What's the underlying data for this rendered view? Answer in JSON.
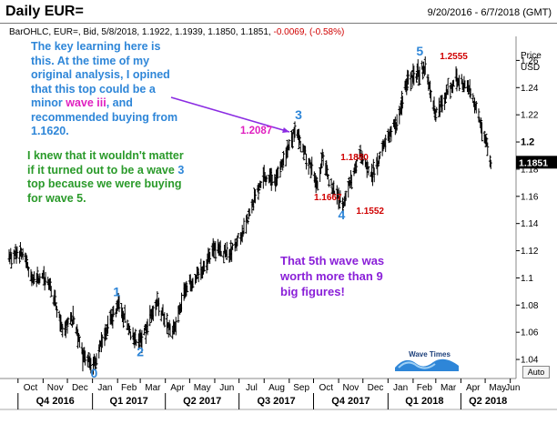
{
  "header": {
    "title": "Daily EUR=",
    "date_range": "9/20/2016 - 6/7/2018 (GMT)"
  },
  "info_line": {
    "main": "BarOHLC, EUR=, Bid, 5/8/2018, 1.1922, 1.1939, 1.1850, 1.1851,",
    "change": "-0.0069, (-0.58%)"
  },
  "annotations": {
    "key_learning": {
      "part1": "The key learning here is this. At the time of my original analysis, I opined that this top could be a minor",
      "highlight": "wave iii",
      "part2": ", and recommended buying from 1.1620."
    },
    "knew": {
      "part1": "I knew that it wouldn't matter if it turned out to be a wave",
      "highlight": "3",
      "part2": "top because we were buying for wave 5."
    },
    "fifth_wave": "That 5th wave was worth more than 9 big figures!"
  },
  "logo_text": "Wave Times",
  "auto_button": "Auto",
  "colors": {
    "bars": "#000000",
    "wave_labels": "#2e86d8",
    "price_labels": "#d00000",
    "highlight_label": "#e020c0",
    "arrow": "#8a2be2",
    "note_blue": "#2e86d8",
    "note_green": "#2a9a2a",
    "note_purple": "#8a20d8"
  },
  "chart_data": {
    "type": "ohlc",
    "ylabel": "Price",
    "yunit": "USD",
    "ylim": [
      1.03,
      1.275
    ],
    "yticks": [
      "1.26",
      "1.24",
      "1.22",
      "1.2",
      "1.18",
      "1.16",
      "1.14",
      "1.12",
      "1.1",
      "1.08",
      "1.06",
      "1.04"
    ],
    "last_price": "1.1851",
    "x_months": [
      "Oct",
      "Nov",
      "Dec",
      "Jan",
      "Feb",
      "Mar",
      "Apr",
      "May",
      "Jun",
      "Jul",
      "Aug",
      "Sep",
      "Oct",
      "Nov",
      "Dec",
      "Jan",
      "Feb",
      "Mar",
      "Apr",
      "May",
      "Jun"
    ],
    "x_quarters": [
      "Q4 2016",
      "Q1 2017",
      "Q2 2017",
      "Q3 2017",
      "Q4 2017",
      "Q1 2018",
      "Q2 2018"
    ],
    "price_path": [
      {
        "date": "2016-09-20",
        "price": 1.115
      },
      {
        "date": "2016-10-05",
        "price": 1.118
      },
      {
        "date": "2016-10-20",
        "price": 1.1
      },
      {
        "date": "2016-11-08",
        "price": 1.098
      },
      {
        "date": "2016-11-25",
        "price": 1.063
      },
      {
        "date": "2016-12-08",
        "price": 1.07
      },
      {
        "date": "2016-12-20",
        "price": 1.043
      },
      {
        "date": "2017-01-03",
        "price": 1.036
      },
      {
        "date": "2017-01-20",
        "price": 1.065
      },
      {
        "date": "2017-02-02",
        "price": 1.08
      },
      {
        "date": "2017-02-22",
        "price": 1.055
      },
      {
        "date": "2017-03-01",
        "price": 1.053
      },
      {
        "date": "2017-03-22",
        "price": 1.082
      },
      {
        "date": "2017-04-10",
        "price": 1.058
      },
      {
        "date": "2017-04-25",
        "price": 1.09
      },
      {
        "date": "2017-05-15",
        "price": 1.105
      },
      {
        "date": "2017-06-01",
        "price": 1.122
      },
      {
        "date": "2017-06-20",
        "price": 1.116
      },
      {
        "date": "2017-07-10",
        "price": 1.14
      },
      {
        "date": "2017-07-31",
        "price": 1.175
      },
      {
        "date": "2017-08-16",
        "price": 1.172
      },
      {
        "date": "2017-09-08",
        "price": 1.2087
      },
      {
        "date": "2017-09-25",
        "price": 1.185
      },
      {
        "date": "2017-10-06",
        "price": 1.1667
      },
      {
        "date": "2017-10-12",
        "price": 1.188
      },
      {
        "date": "2017-10-27",
        "price": 1.16
      },
      {
        "date": "2017-11-07",
        "price": 1.1552
      },
      {
        "date": "2017-11-27",
        "price": 1.192
      },
      {
        "date": "2017-12-12",
        "price": 1.175
      },
      {
        "date": "2017-12-29",
        "price": 1.2
      },
      {
        "date": "2018-01-12",
        "price": 1.215
      },
      {
        "date": "2018-01-25",
        "price": 1.245
      },
      {
        "date": "2018-02-16",
        "price": 1.2555
      },
      {
        "date": "2018-03-01",
        "price": 1.22
      },
      {
        "date": "2018-03-27",
        "price": 1.247
      },
      {
        "date": "2018-04-12",
        "price": 1.238
      },
      {
        "date": "2018-04-25",
        "price": 1.215
      },
      {
        "date": "2018-05-08",
        "price": 1.1851
      }
    ],
    "wave_labels": [
      {
        "text": "0",
        "date": "2017-01-03",
        "price": 1.036
      },
      {
        "text": "1",
        "date": "2017-02-02",
        "price": 1.08
      },
      {
        "text": "2",
        "date": "2017-03-01",
        "price": 1.053
      },
      {
        "text": "3",
        "date": "2017-09-08",
        "price": 1.2087
      },
      {
        "text": "4",
        "date": "2017-11-07",
        "price": 1.1552
      },
      {
        "text": "5",
        "date": "2018-02-16",
        "price": 1.2555
      }
    ],
    "price_labels": [
      {
        "text": "1.2087",
        "date": "2017-09-08",
        "price": 1.2087
      },
      {
        "text": "1.1880",
        "date": "2017-10-12",
        "price": 1.188
      },
      {
        "text": "1.1667",
        "date": "2017-10-06",
        "price": 1.1667
      },
      {
        "text": "1.1552",
        "date": "2017-11-07",
        "price": 1.1552
      },
      {
        "text": "1.2555",
        "date": "2018-02-16",
        "price": 1.2555
      }
    ]
  }
}
